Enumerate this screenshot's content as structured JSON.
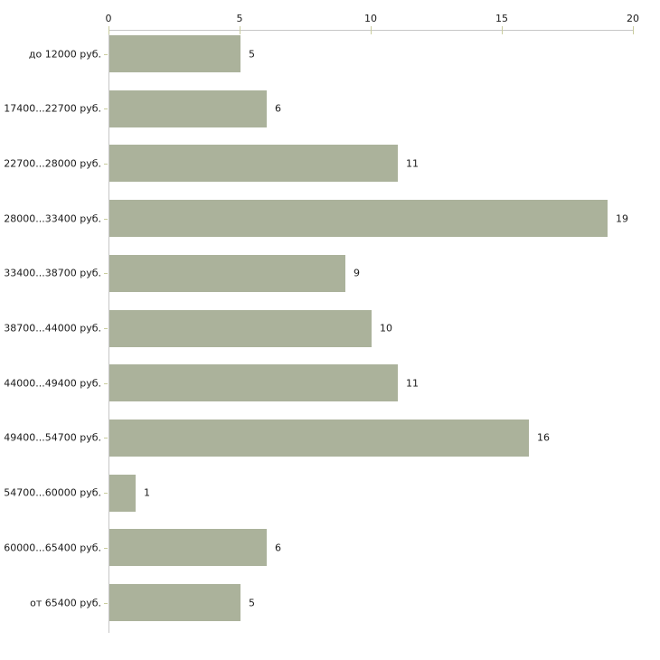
{
  "chart_data": {
    "type": "bar",
    "orientation": "horizontal",
    "title": "",
    "xlabel": "",
    "ylabel": "",
    "categories": [
      "до 12000 руб.",
      "17400...22700 руб.",
      "22700...28000 руб.",
      "28000...33400 руб.",
      "33400...38700 руб.",
      "38700...44000 руб.",
      "44000...49400 руб.",
      "49400...54700 руб.",
      "54700...60000 руб.",
      "60000...65400 руб.",
      "от 65400 руб."
    ],
    "values": [
      5,
      6,
      11,
      19,
      9,
      10,
      11,
      16,
      1,
      6,
      5
    ],
    "value_labels": [
      "5",
      "6",
      "11",
      "19",
      "9",
      "10",
      "11",
      "16",
      "1",
      "6",
      "5"
    ],
    "x_axis": {
      "position": "top",
      "min": 0,
      "max": 20,
      "ticks": [
        0,
        5,
        10,
        15,
        20
      ],
      "tick_labels": [
        "0",
        "5",
        "10",
        "15",
        "20"
      ]
    },
    "grid": false,
    "legend": false,
    "colors": {
      "bar": "#abb29b",
      "axis_line": "#c6c6c6",
      "tick_mark": "#c9cc9e",
      "text": "#1a1a1a",
      "background": "#ffffff"
    }
  }
}
